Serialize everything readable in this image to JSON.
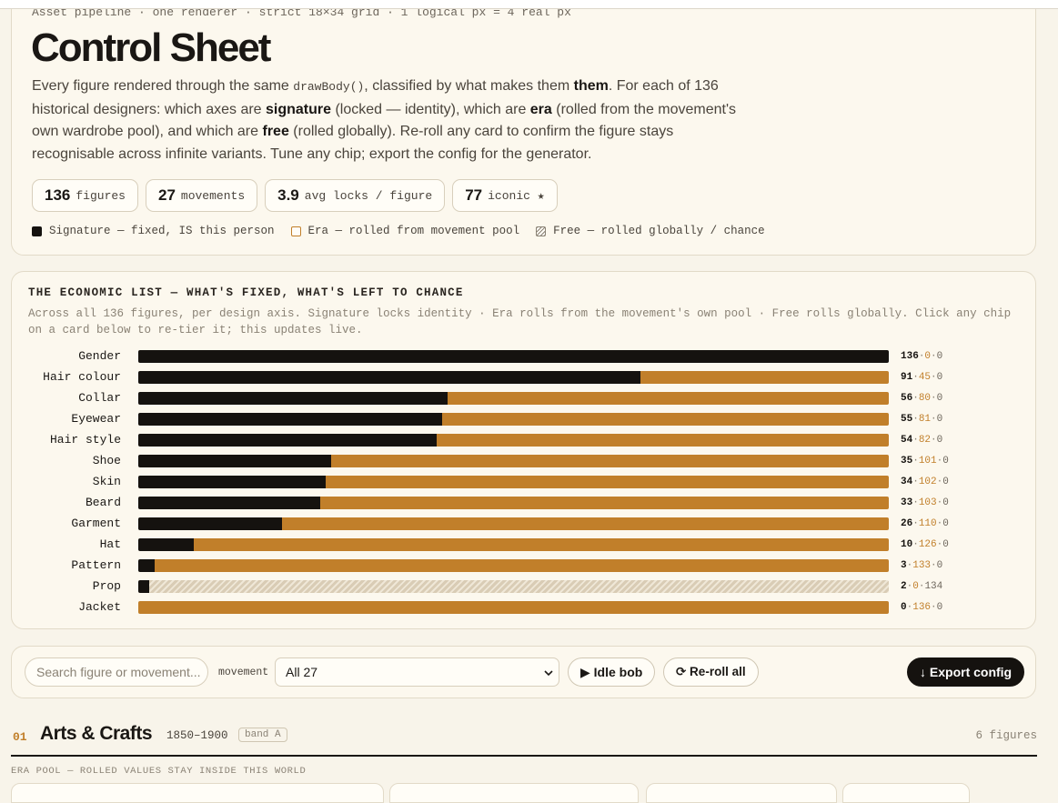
{
  "header": {
    "kicker": "Asset pipeline · one renderer · strict 18×34 grid · 1 logical px = 4 real px",
    "title": "Control Sheet",
    "intro": [
      {
        "text": "Every figure rendered through the same ",
        "style": "plain"
      },
      {
        "text": "drawBody()",
        "style": "code"
      },
      {
        "text": ", classified by what makes them ",
        "style": "plain"
      },
      {
        "text": "them",
        "style": "bold"
      },
      {
        "text": ". For each of 136 historical designers: which axes are ",
        "style": "plain"
      },
      {
        "text": "signature",
        "style": "bold"
      },
      {
        "text": " (locked — identity), which are ",
        "style": "plain"
      },
      {
        "text": "era",
        "style": "bold"
      },
      {
        "text": " (rolled from the movement's own wardrobe pool), and which are ",
        "style": "plain"
      },
      {
        "text": "free",
        "style": "bold"
      },
      {
        "text": " (rolled globally). Re-roll any card to confirm the figure stays recognisable across infinite variants. Tune any chip; export the config for the generator.",
        "style": "plain"
      }
    ],
    "stats": [
      {
        "value": 136,
        "label": "figures"
      },
      {
        "value": 27,
        "label": "movements"
      },
      {
        "value": 3.9,
        "label": "avg locks / figure"
      },
      {
        "value": 77,
        "label": "iconic ★"
      }
    ]
  },
  "economic_list": {
    "type": "stacked-bar",
    "title": "THE ECONOMIC LIST — WHAT'S FIXED, WHAT'S LEFT TO CHANCE",
    "subtitle": "Across all 136 figures, per design axis. Signature locks identity · Era rolls from the movement's own pool · Free rolls globally. Click any chip on a card below to re-tier it; this updates live.",
    "value_separator": "·",
    "categories": [
      "Gender",
      "Hair colour",
      "Collar",
      "Eyewear",
      "Hair style",
      "Shoe",
      "Skin",
      "Beard",
      "Garment",
      "Hat",
      "Pattern",
      "Prop",
      "Jacket"
    ],
    "series": [
      {
        "name": "Signature — fixed, IS this person",
        "color": "#15120f",
        "pattern": "solid",
        "values": [
          136,
          91,
          56,
          55,
          54,
          35,
          34,
          33,
          26,
          10,
          3,
          2,
          0
        ]
      },
      {
        "name": "Era — rolled from movement pool",
        "color": "#c17f2a",
        "pattern": "outline",
        "values": [
          0,
          45,
          80,
          81,
          82,
          101,
          102,
          103,
          110,
          126,
          133,
          0,
          136
        ]
      },
      {
        "name": "Free — rolled globally / chance",
        "color": "#d9ccb5",
        "pattern": "hatch",
        "values": [
          0,
          0,
          0,
          0,
          0,
          0,
          0,
          0,
          0,
          0,
          0,
          134,
          0
        ]
      }
    ]
  },
  "controls": {
    "search_placeholder": "Search figure or movement...",
    "movement_label": "movement",
    "movement_select": "All 27",
    "idle_button": "▶ Idle bob",
    "reroll_button": "⟳ Re-roll all",
    "export_button": "↓ Export config"
  },
  "section": {
    "number": "01",
    "title": "Arts & Crafts",
    "years": "1850–1900",
    "band": "band A",
    "count": "6 figures",
    "note": "ERA POOL — ROLLED VALUES STAY INSIDE THIS WORLD"
  }
}
